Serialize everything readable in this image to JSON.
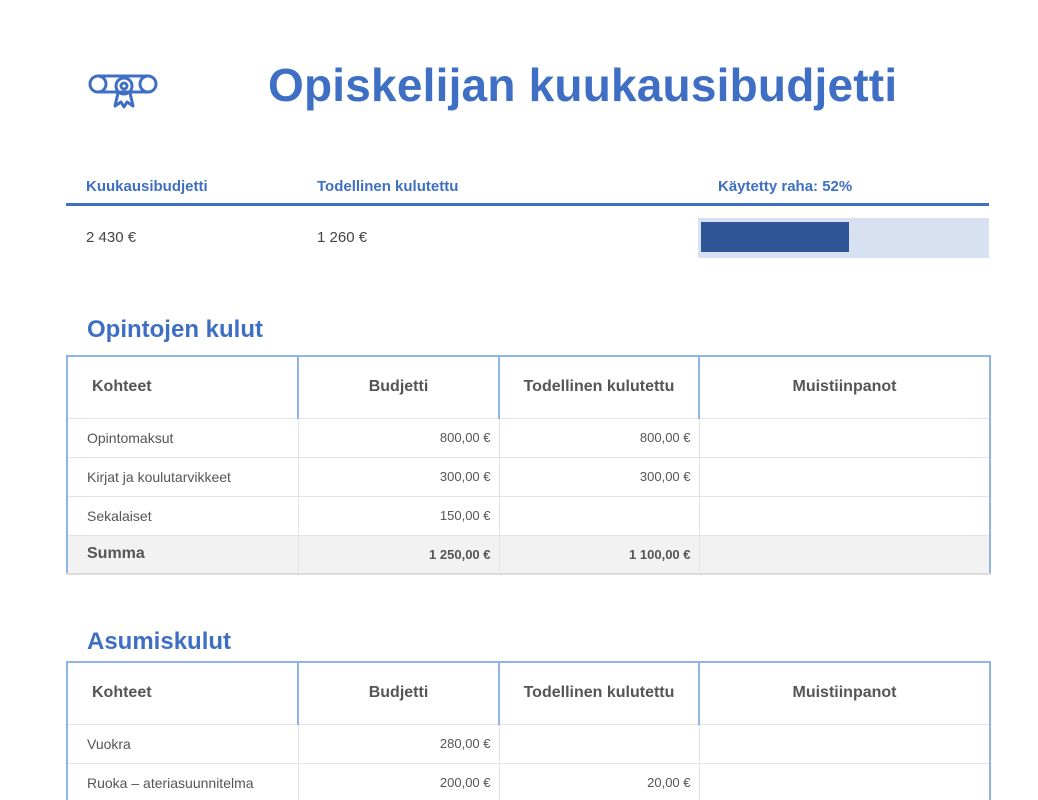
{
  "header": {
    "title": "Opiskelijan kuukausibudjetti",
    "logo_icon": "diploma-certificate-icon"
  },
  "summary": {
    "budget_label": "Kuukausibudjetti",
    "budget_value": "2 430 €",
    "spent_label": "Todellinen kulutettu",
    "spent_value": "1 260 €",
    "used_label": "Käytetty raha: 52%",
    "used_fraction": 0.52
  },
  "colors": {
    "accent": "#3f6fc4",
    "progress_fill": "#2f5597",
    "progress_track": "#d7e1f1"
  },
  "sections": [
    {
      "title": "Opintojen kulut",
      "columns": [
        "Kohteet",
        "Budjetti",
        "Todellinen kulutettu",
        "Muistiinpanot"
      ],
      "rows": [
        {
          "item": "Opintomaksut",
          "budget": "800,00 €",
          "actual": "800,00 €",
          "notes": ""
        },
        {
          "item": "Kirjat ja koulutarvikkeet",
          "budget": "300,00 €",
          "actual": "300,00 €",
          "notes": ""
        },
        {
          "item": "Sekalaiset",
          "budget": "150,00 €",
          "actual": "",
          "notes": ""
        }
      ],
      "total": {
        "item": "Summa",
        "budget": "1 250,00 €",
        "actual": "1 100,00 €",
        "notes": ""
      }
    },
    {
      "title": "Asumiskulut",
      "columns": [
        "Kohteet",
        "Budjetti",
        "Todellinen kulutettu",
        "Muistiinpanot"
      ],
      "rows": [
        {
          "item": "Vuokra",
          "budget": "280,00 €",
          "actual": "",
          "notes": ""
        },
        {
          "item": "Ruoka – ateriasuunnitelma",
          "budget": "200,00 €",
          "actual": "20,00 €",
          "notes": ""
        }
      ]
    }
  ]
}
